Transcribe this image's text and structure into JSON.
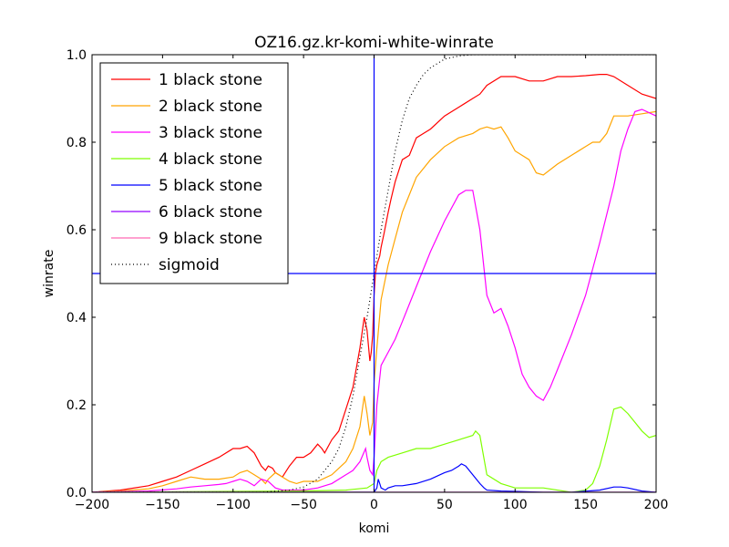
{
  "chart_data": {
    "type": "line",
    "title": "OZ16.gz.kr-komi-white-winrate",
    "xlabel": "komi",
    "ylabel": "winrate",
    "xlim": [
      -200,
      200
    ],
    "ylim": [
      0.0,
      1.0
    ],
    "xticks": [
      -200,
      -150,
      -100,
      -50,
      0,
      50,
      100,
      150,
      200
    ],
    "xtick_labels": [
      "−200",
      "−150",
      "−100",
      "−50",
      "0",
      "50",
      "100",
      "150",
      "200"
    ],
    "yticks": [
      0.0,
      0.2,
      0.4,
      0.6,
      0.8,
      1.0
    ],
    "ytick_labels": [
      "0.0",
      "0.2",
      "0.4",
      "0.6",
      "0.8",
      "1.0"
    ],
    "grid": false,
    "legend_position": "top-left",
    "reference_lines": {
      "vertical_x": 0,
      "horizontal_y": 0.5,
      "color": "#0000ff"
    },
    "series": [
      {
        "name": "1 black stone",
        "color": "#ff0000",
        "style": "solid",
        "x": [
          -200,
          -180,
          -160,
          -150,
          -140,
          -130,
          -120,
          -110,
          -100,
          -95,
          -90,
          -85,
          -80,
          -77,
          -75,
          -72,
          -70,
          -65,
          -60,
          -55,
          -50,
          -45,
          -40,
          -37,
          -35,
          -30,
          -25,
          -20,
          -15,
          -10,
          -7,
          -5,
          -3,
          -2,
          -1,
          0,
          1,
          2,
          3,
          4,
          5,
          7,
          10,
          12,
          15,
          20,
          25,
          30,
          35,
          40,
          50,
          60,
          70,
          75,
          80,
          90,
          95,
          100,
          110,
          120,
          130,
          140,
          150,
          160,
          165,
          170,
          180,
          190,
          200
        ],
        "y": [
          0.0,
          0.005,
          0.015,
          0.025,
          0.035,
          0.05,
          0.065,
          0.08,
          0.1,
          0.1,
          0.105,
          0.09,
          0.06,
          0.05,
          0.06,
          0.055,
          0.045,
          0.035,
          0.06,
          0.08,
          0.08,
          0.09,
          0.11,
          0.1,
          0.09,
          0.12,
          0.14,
          0.19,
          0.24,
          0.33,
          0.4,
          0.37,
          0.3,
          0.32,
          0.36,
          0.45,
          0.5,
          0.52,
          0.53,
          0.54,
          0.56,
          0.59,
          0.64,
          0.67,
          0.71,
          0.76,
          0.77,
          0.81,
          0.82,
          0.83,
          0.86,
          0.88,
          0.9,
          0.91,
          0.93,
          0.95,
          0.95,
          0.95,
          0.94,
          0.94,
          0.95,
          0.95,
          0.952,
          0.955,
          0.955,
          0.95,
          0.93,
          0.91,
          0.9
        ]
      },
      {
        "name": "2 black stone",
        "color": "#ffa500",
        "style": "solid",
        "x": [
          -200,
          -180,
          -160,
          -150,
          -140,
          -130,
          -120,
          -110,
          -100,
          -95,
          -90,
          -85,
          -80,
          -77,
          -75,
          -70,
          -65,
          -60,
          -55,
          -50,
          -40,
          -30,
          -20,
          -15,
          -10,
          -7,
          -5,
          -3,
          -1,
          0,
          2,
          5,
          10,
          15,
          20,
          25,
          30,
          35,
          40,
          50,
          60,
          70,
          75,
          80,
          85,
          90,
          95,
          100,
          110,
          115,
          120,
          130,
          140,
          150,
          155,
          160,
          165,
          170,
          175,
          180,
          190,
          200
        ],
        "y": [
          0.0,
          0.003,
          0.008,
          0.015,
          0.025,
          0.035,
          0.03,
          0.03,
          0.035,
          0.045,
          0.05,
          0.04,
          0.03,
          0.02,
          0.03,
          0.045,
          0.035,
          0.025,
          0.02,
          0.025,
          0.025,
          0.04,
          0.07,
          0.1,
          0.15,
          0.22,
          0.18,
          0.13,
          0.16,
          0.25,
          0.33,
          0.44,
          0.52,
          0.58,
          0.64,
          0.68,
          0.72,
          0.74,
          0.76,
          0.79,
          0.81,
          0.82,
          0.83,
          0.835,
          0.83,
          0.835,
          0.81,
          0.78,
          0.76,
          0.73,
          0.725,
          0.75,
          0.77,
          0.79,
          0.8,
          0.8,
          0.82,
          0.86,
          0.86,
          0.86,
          0.865,
          0.87
        ]
      },
      {
        "name": "3 black stone",
        "color": "#ff00ff",
        "style": "solid",
        "x": [
          -200,
          -160,
          -140,
          -130,
          -120,
          -110,
          -105,
          -100,
          -95,
          -90,
          -85,
          -80,
          -75,
          -70,
          -65,
          -60,
          -50,
          -40,
          -30,
          -20,
          -15,
          -10,
          -6,
          -5,
          -3,
          -1,
          0,
          2,
          5,
          10,
          15,
          20,
          25,
          30,
          40,
          50,
          60,
          65,
          70,
          75,
          80,
          85,
          90,
          95,
          100,
          105,
          110,
          115,
          120,
          125,
          130,
          140,
          150,
          160,
          170,
          175,
          180,
          185,
          190,
          200
        ],
        "y": [
          0.0,
          0.003,
          0.008,
          0.012,
          0.015,
          0.018,
          0.02,
          0.025,
          0.03,
          0.025,
          0.015,
          0.03,
          0.025,
          0.01,
          0.005,
          0.005,
          0.005,
          0.01,
          0.02,
          0.04,
          0.05,
          0.07,
          0.1,
          0.08,
          0.05,
          0.04,
          0.08,
          0.2,
          0.29,
          0.32,
          0.35,
          0.39,
          0.43,
          0.47,
          0.55,
          0.62,
          0.68,
          0.69,
          0.69,
          0.6,
          0.45,
          0.41,
          0.42,
          0.38,
          0.33,
          0.27,
          0.24,
          0.22,
          0.21,
          0.24,
          0.28,
          0.36,
          0.45,
          0.57,
          0.7,
          0.78,
          0.83,
          0.87,
          0.875,
          0.86
        ]
      },
      {
        "name": "4 black stone",
        "color": "#7fff00",
        "style": "solid",
        "x": [
          -200,
          -100,
          -50,
          -20,
          -5,
          0,
          2,
          5,
          10,
          20,
          30,
          40,
          50,
          60,
          70,
          72,
          75,
          80,
          90,
          100,
          120,
          140,
          150,
          155,
          160,
          165,
          170,
          175,
          180,
          185,
          190,
          195,
          200
        ],
        "y": [
          0.0,
          0.002,
          0.003,
          0.005,
          0.01,
          0.02,
          0.05,
          0.07,
          0.08,
          0.09,
          0.1,
          0.1,
          0.11,
          0.12,
          0.13,
          0.14,
          0.13,
          0.04,
          0.02,
          0.01,
          0.01,
          0.0,
          0.005,
          0.02,
          0.06,
          0.12,
          0.19,
          0.195,
          0.18,
          0.16,
          0.14,
          0.125,
          0.13
        ]
      },
      {
        "name": "5 black stone",
        "color": "#0000ff",
        "style": "solid",
        "x": [
          -200,
          -50,
          -5,
          0,
          2,
          3,
          4,
          5,
          8,
          10,
          15,
          20,
          30,
          40,
          50,
          55,
          60,
          62,
          65,
          70,
          75,
          78,
          80,
          90,
          100,
          120,
          140,
          160,
          170,
          175,
          180,
          190,
          200
        ],
        "y": [
          0.0,
          0.0,
          0.0,
          0.0,
          0.01,
          0.03,
          0.02,
          0.01,
          0.005,
          0.01,
          0.015,
          0.015,
          0.02,
          0.03,
          0.045,
          0.05,
          0.06,
          0.065,
          0.06,
          0.04,
          0.02,
          0.01,
          0.005,
          0.003,
          0.002,
          0.0,
          0.0,
          0.005,
          0.012,
          0.012,
          0.01,
          0.003,
          0.0
        ]
      },
      {
        "name": "6 black stone",
        "color": "#9400ff",
        "style": "solid",
        "x": [
          -200,
          -100,
          0,
          50,
          100,
          150,
          200
        ],
        "y": [
          0.0,
          0.0,
          0.0,
          0.0,
          0.0,
          0.0,
          0.0
        ]
      },
      {
        "name": "9 black stone",
        "color": "#ff69b4",
        "style": "solid",
        "x": [
          -200,
          -100,
          0,
          50,
          100,
          150,
          200
        ],
        "y": [
          0.0,
          0.0,
          0.0,
          0.0,
          0.0,
          0.0,
          0.0
        ]
      },
      {
        "name": "sigmoid",
        "color": "#000000",
        "style": "dotted",
        "x": [
          -200,
          -150,
          -100,
          -80,
          -60,
          -50,
          -40,
          -30,
          -25,
          -20,
          -15,
          -10,
          -5,
          0,
          5,
          10,
          15,
          20,
          25,
          30,
          35,
          40,
          50,
          60,
          70,
          80,
          100,
          200
        ],
        "y": [
          0.0,
          0.0,
          0.0,
          0.0,
          0.005,
          0.012,
          0.03,
          0.07,
          0.1,
          0.15,
          0.22,
          0.31,
          0.4,
          0.5,
          0.6,
          0.69,
          0.78,
          0.85,
          0.9,
          0.93,
          0.955,
          0.97,
          0.99,
          0.997,
          1.0,
          1.0,
          1.0,
          1.0
        ]
      }
    ]
  }
}
